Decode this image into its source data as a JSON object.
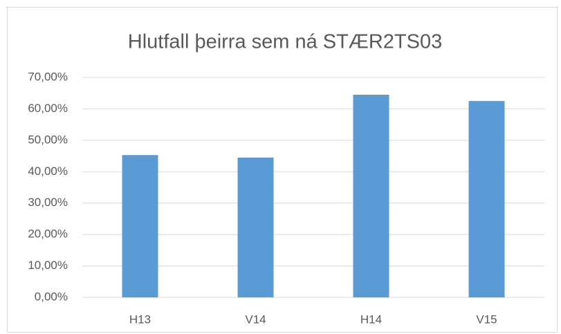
{
  "chart_data": {
    "type": "bar",
    "title": "Hlutfall þeirra sem ná STÆR2TS03",
    "categories": [
      "H13",
      "V14",
      "H14",
      "V15"
    ],
    "values": [
      45.3,
      44.5,
      64.5,
      62.5
    ],
    "color": "#5b9bd5",
    "ylim": [
      0,
      70
    ],
    "yticks": [
      {
        "value": 0,
        "label": "0,00%"
      },
      {
        "value": 10,
        "label": "10,00%"
      },
      {
        "value": 20,
        "label": "20,00%"
      },
      {
        "value": 30,
        "label": "30,00%"
      },
      {
        "value": 40,
        "label": "40,00%"
      },
      {
        "value": 50,
        "label": "50,00%"
      },
      {
        "value": 60,
        "label": "60,00%"
      },
      {
        "value": 70,
        "label": "70,00%"
      }
    ],
    "grid": true
  }
}
